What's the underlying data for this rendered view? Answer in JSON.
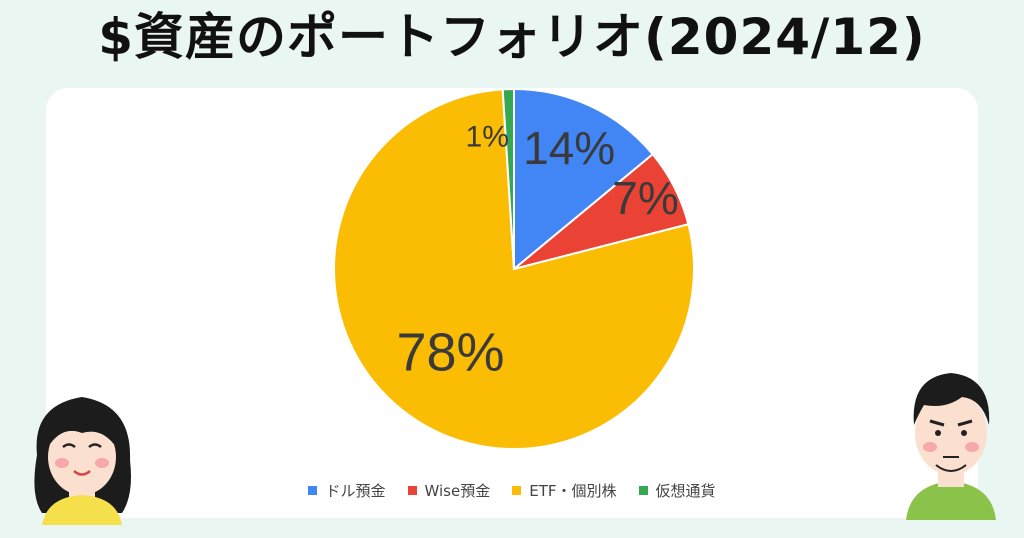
{
  "title": "$資産のポートフォリオ(2024/12)",
  "chart_data": {
    "type": "pie",
    "title": "",
    "series": [
      {
        "name": "ドル預金",
        "value": 14,
        "label": "14%",
        "color": "#4285f4"
      },
      {
        "name": "Wise預金",
        "value": 7,
        "label": "7%",
        "color": "#ea4335"
      },
      {
        "name": "ETF・個別株",
        "value": 78,
        "label": "78%",
        "color": "#fbbc04"
      },
      {
        "name": "仮想通貨",
        "value": 1,
        "label": "1%",
        "color": "#34a853"
      }
    ],
    "start_angle_deg": 0,
    "direction": "clockwise",
    "legend_placement": "bottom"
  },
  "decor": {
    "left_character": "woman-icon",
    "right_character": "man-icon"
  }
}
